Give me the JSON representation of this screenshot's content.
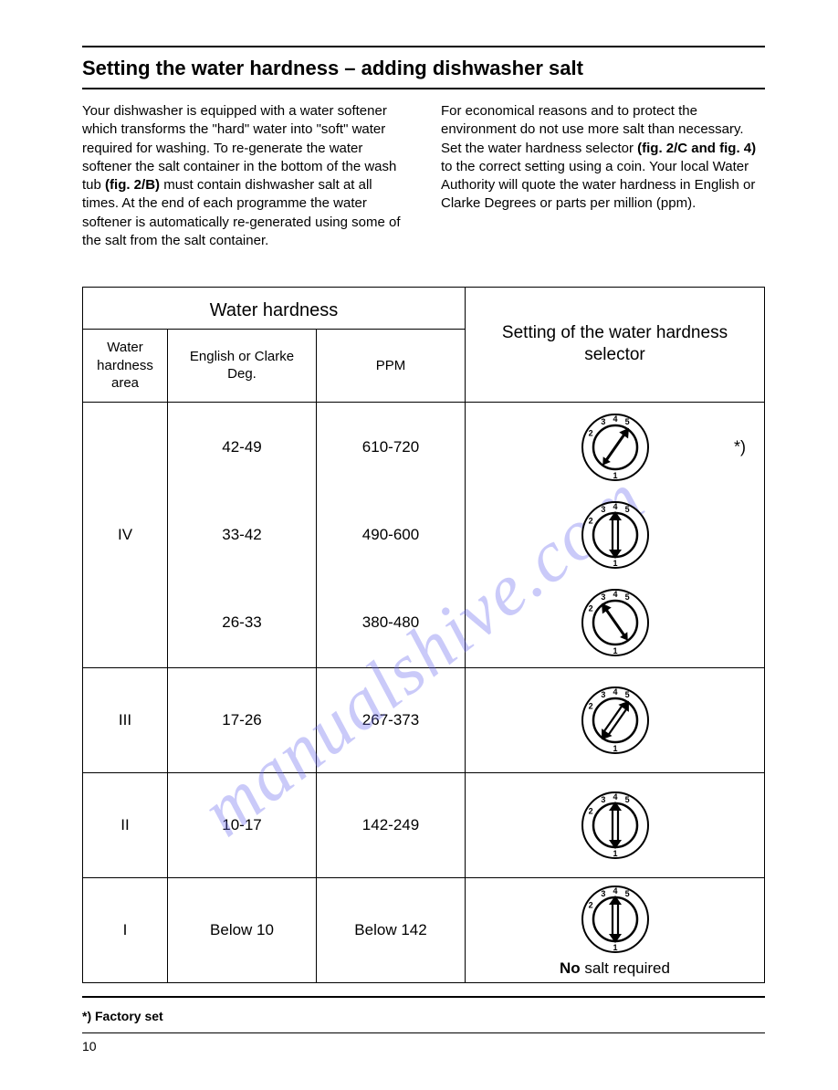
{
  "title": "Setting the water hardness – adding dishwasher salt",
  "watermark": "manualshive.com",
  "para_left": {
    "t1": "Your dishwasher is equipped with a water softener which transforms the \"hard\" water into \"soft\" water required for washing. To re-generate the water softener the salt container in the bottom of the wash tub ",
    "b1": "(fig. 2/B)",
    "t2": " must contain dishwasher salt at all times. At the end of each programme the water softener is automatically re-generated using some of the salt from the salt container."
  },
  "para_right": {
    "t1": "For economical reasons and to protect the environment do not use more salt than necessary. Set the water hardness selector ",
    "b1": "(fig. 2/C and fig. 4)",
    "t2": " to the correct setting using a coin. Your local Water Authority will quote the water hardness in English or Clarke Degrees or parts per million (ppm)."
  },
  "table": {
    "header_wh": "Water hardness",
    "header_sel": "Setting of the water hardness selector",
    "sub_area": "Water hardness area",
    "sub_deg": "English or Clarke Deg.",
    "sub_ppm": "PPM",
    "row4": {
      "area": "IV",
      "sub": [
        {
          "deg": "42-49",
          "ppm": "610-720",
          "angle": 55,
          "double": false,
          "note": "*)"
        },
        {
          "deg": "33-42",
          "ppm": "490-600",
          "angle": 90,
          "double": true,
          "note": ""
        },
        {
          "deg": "26-33",
          "ppm": "380-480",
          "angle": 125,
          "double": false,
          "note": ""
        }
      ]
    },
    "row3": {
      "area": "III",
      "deg": "17-26",
      "ppm": "267-373",
      "angle": 55,
      "double": true
    },
    "row2": {
      "area": "II",
      "deg": "10-17",
      "ppm": "142-249",
      "angle": -90,
      "double": true
    },
    "row1": {
      "area": "I",
      "deg": "Below 10",
      "ppm": "Below 142",
      "angle": -90,
      "double": true,
      "nosalt_b": "No",
      "nosalt_t": " salt required"
    }
  },
  "footnote": "*) Factory set",
  "pagenum": "10",
  "dial": {
    "labels": [
      "1",
      "2",
      "3",
      "4",
      "5"
    ],
    "label_angles": [
      -90,
      150,
      115,
      90,
      65
    ]
  }
}
